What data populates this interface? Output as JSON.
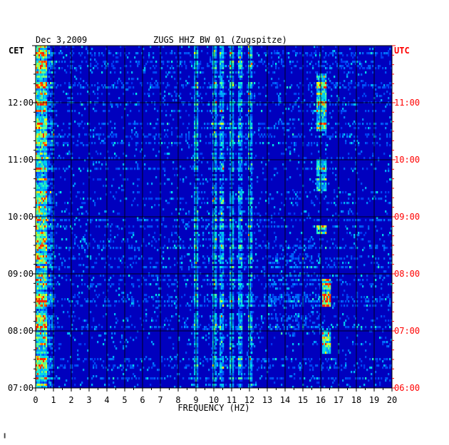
{
  "chart_data": {
    "type": "heatmap",
    "date_label": "Dec 3,2009",
    "title": "ZUGS HHZ BW 01 (Zugspitze)",
    "left_timezone": "CET",
    "right_timezone": "UTC",
    "xlabel": "FREQUENCY (HZ)",
    "xlim": [
      0,
      20
    ],
    "x_ticks": [
      "0",
      "1",
      "2",
      "3",
      "4",
      "5",
      "6",
      "7",
      "8",
      "9",
      "10",
      "11",
      "12",
      "13",
      "14",
      "15",
      "16",
      "17",
      "18",
      "19",
      "20"
    ],
    "y_ticks_left": [
      "12:00",
      "11:00",
      "10:00",
      "09:00",
      "08:00",
      "07:00"
    ],
    "y_ticks_right": [
      "11:00",
      "10:00",
      "09:00",
      "08:00",
      "07:00",
      "06:00"
    ],
    "colors": {
      "low": "#0000c8",
      "mid": "#00b4ff",
      "high": "#ffff00",
      "peak": "#ff2000",
      "axis_right": "#ff0000"
    },
    "notes": [
      "strong energy at 0-0.5 Hz",
      "recurring spectral lines near 9, 10, 11 Hz",
      "bursts near 16 Hz around 07:00-08:30 and 10:00-12:00 CET"
    ]
  },
  "footer_mark": "▐"
}
